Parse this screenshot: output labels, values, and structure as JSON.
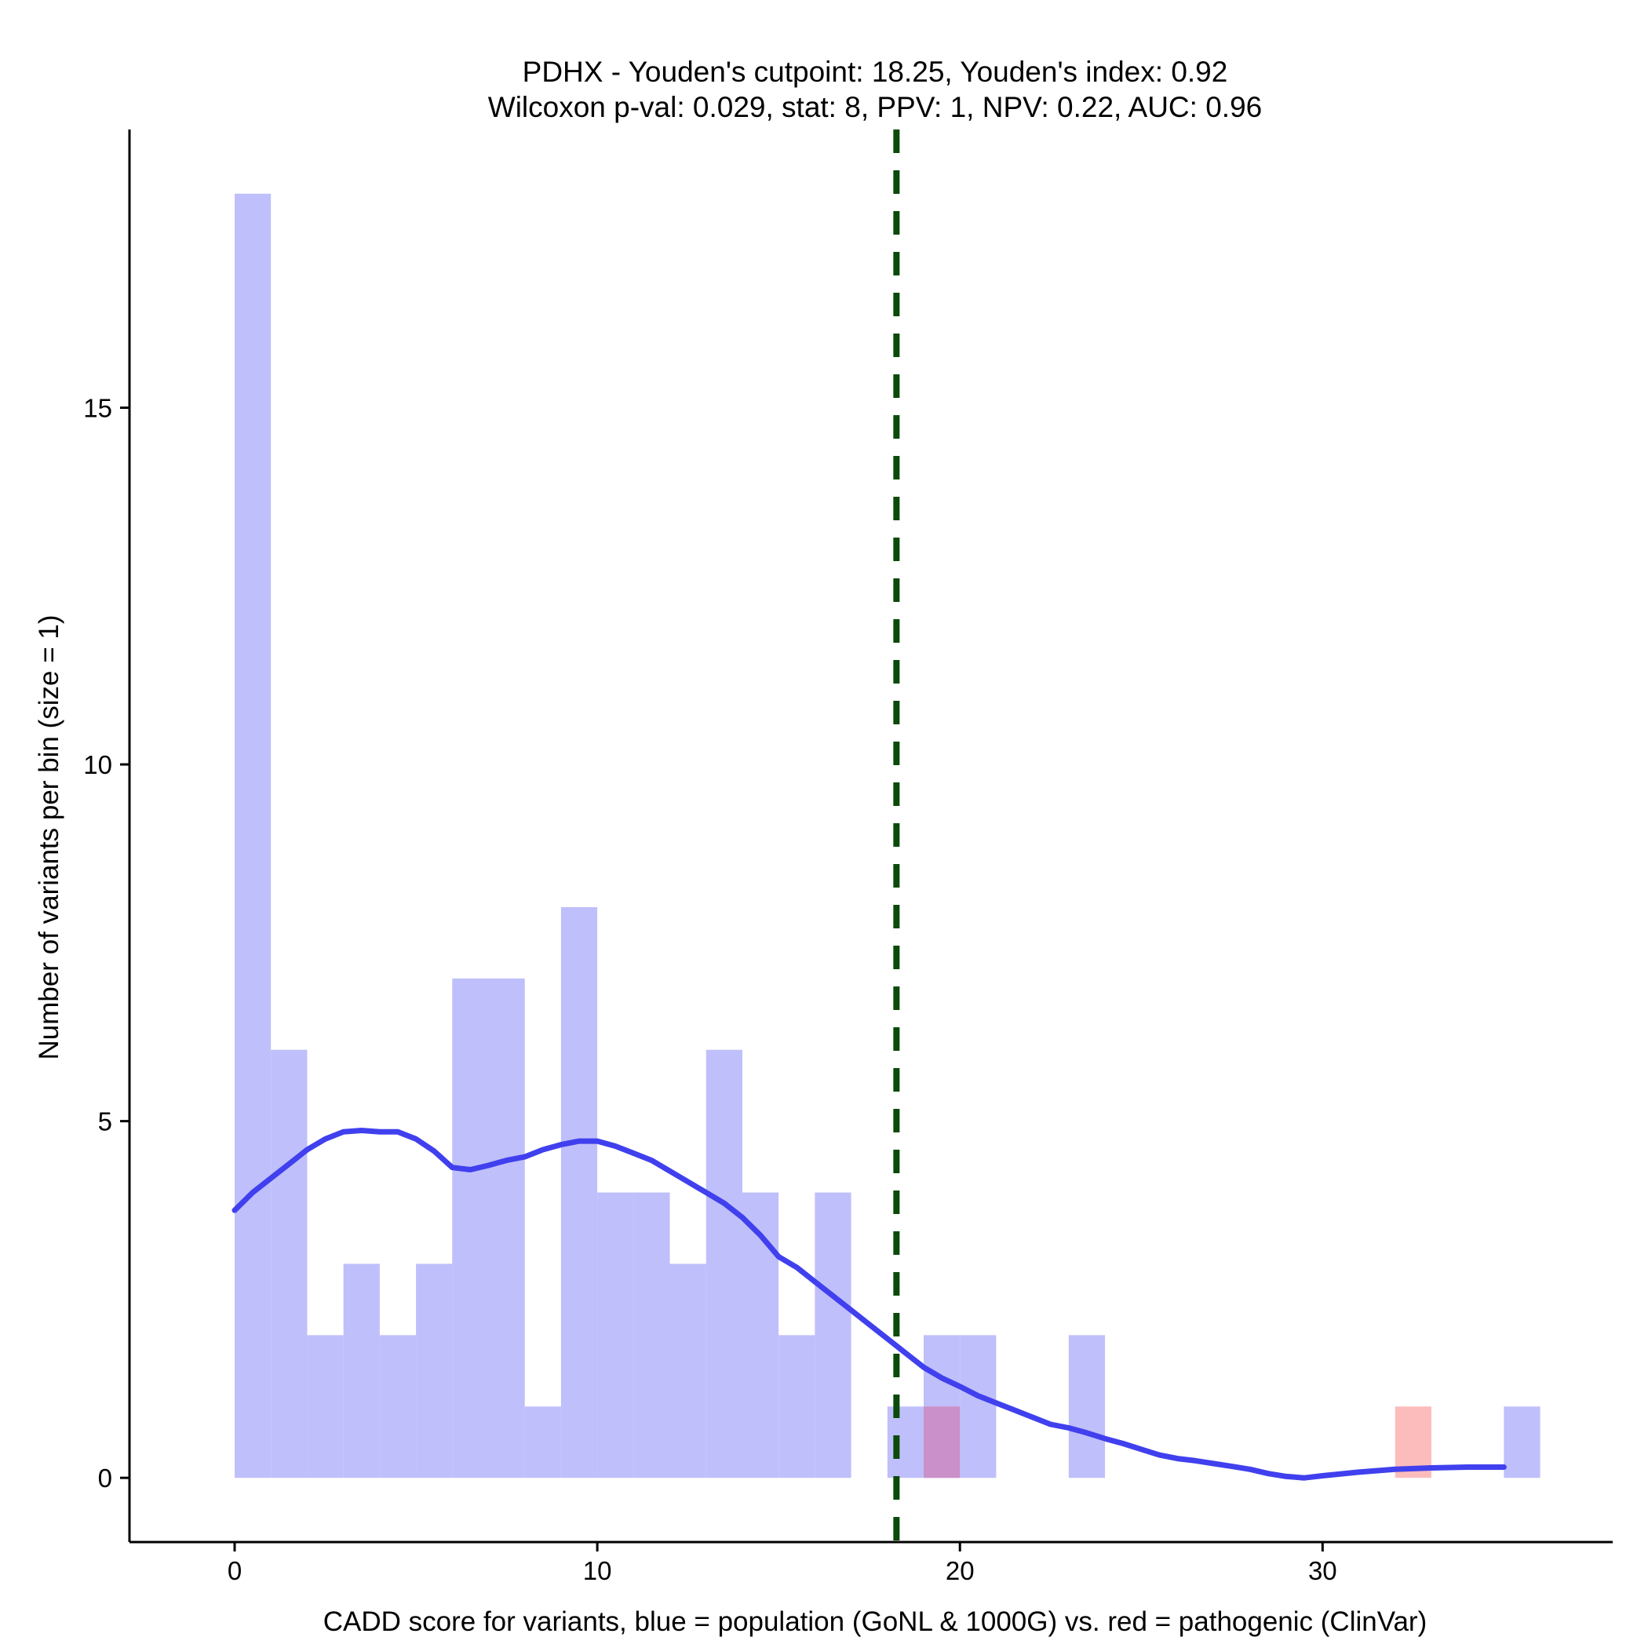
{
  "chart_data": {
    "type": "bar",
    "title_line1": "PDHX - Youden's cutpoint: 18.25, Youden's index: 0.92",
    "title_line2": "Wilcoxon p-val: 0.029, stat: 8, PPV: 1, NPV: 0.22, AUC: 0.96",
    "xlabel": "CADD score for variants, blue = population (GoNL & 1000G) vs. red = pathogenic (ClinVar)",
    "ylabel": "Number of variants per bin (size = 1)",
    "xlim": [
      -2.9,
      38
    ],
    "ylim": [
      -0.9,
      18.9
    ],
    "xticks": [
      0,
      10,
      20,
      30
    ],
    "yticks": [
      0,
      5,
      10,
      15
    ],
    "bin_width": 1,
    "cutpoint": 18.25,
    "colors": {
      "population": "#bfbffb",
      "pathogenic": "#fcbcbc",
      "overlap": "#c990c9",
      "density": "#4040ee",
      "cutpoint": "#0a4a0a"
    },
    "series": [
      {
        "name": "population",
        "bins": [
          {
            "start": 0,
            "count": 18
          },
          {
            "start": 1,
            "count": 6
          },
          {
            "start": 2,
            "count": 2
          },
          {
            "start": 3,
            "count": 3
          },
          {
            "start": 4,
            "count": 2
          },
          {
            "start": 5,
            "count": 3
          },
          {
            "start": 6,
            "count": 7
          },
          {
            "start": 7,
            "count": 7
          },
          {
            "start": 8,
            "count": 1
          },
          {
            "start": 9,
            "count": 8
          },
          {
            "start": 10,
            "count": 4
          },
          {
            "start": 11,
            "count": 4
          },
          {
            "start": 12,
            "count": 3
          },
          {
            "start": 13,
            "count": 6
          },
          {
            "start": 14,
            "count": 4
          },
          {
            "start": 15,
            "count": 2
          },
          {
            "start": 16,
            "count": 4
          },
          {
            "start": 18,
            "count": 1
          },
          {
            "start": 19,
            "count": 2
          },
          {
            "start": 20,
            "count": 2
          },
          {
            "start": 23,
            "count": 2
          },
          {
            "start": 35,
            "count": 1
          }
        ]
      },
      {
        "name": "pathogenic",
        "bins": [
          {
            "start": 19,
            "count": 1
          },
          {
            "start": 32,
            "count": 1
          }
        ]
      }
    ],
    "density_curve": [
      [
        0,
        3.75
      ],
      [
        0.5,
        4.0
      ],
      [
        1,
        4.2
      ],
      [
        1.5,
        4.4
      ],
      [
        2,
        4.6
      ],
      [
        2.5,
        4.75
      ],
      [
        3,
        4.85
      ],
      [
        3.5,
        4.87
      ],
      [
        4,
        4.85
      ],
      [
        4.5,
        4.85
      ],
      [
        5,
        4.75
      ],
      [
        5.5,
        4.58
      ],
      [
        6,
        4.35
      ],
      [
        6.5,
        4.32
      ],
      [
        7,
        4.38
      ],
      [
        7.5,
        4.45
      ],
      [
        8,
        4.5
      ],
      [
        8.5,
        4.6
      ],
      [
        9,
        4.67
      ],
      [
        9.5,
        4.72
      ],
      [
        10,
        4.72
      ],
      [
        10.5,
        4.65
      ],
      [
        11,
        4.55
      ],
      [
        11.5,
        4.45
      ],
      [
        12,
        4.3
      ],
      [
        12.5,
        4.15
      ],
      [
        13,
        4.0
      ],
      [
        13.5,
        3.85
      ],
      [
        14,
        3.65
      ],
      [
        14.5,
        3.4
      ],
      [
        15,
        3.1
      ],
      [
        15.5,
        2.95
      ],
      [
        16,
        2.75
      ],
      [
        16.5,
        2.55
      ],
      [
        17,
        2.35
      ],
      [
        17.5,
        2.15
      ],
      [
        18,
        1.95
      ],
      [
        18.5,
        1.75
      ],
      [
        19,
        1.55
      ],
      [
        19.5,
        1.4
      ],
      [
        20,
        1.28
      ],
      [
        20.5,
        1.15
      ],
      [
        21,
        1.05
      ],
      [
        21.5,
        0.95
      ],
      [
        22,
        0.85
      ],
      [
        22.5,
        0.75
      ],
      [
        23,
        0.7
      ],
      [
        23.5,
        0.63
      ],
      [
        24,
        0.55
      ],
      [
        24.5,
        0.48
      ],
      [
        25,
        0.4
      ],
      [
        25.5,
        0.32
      ],
      [
        26,
        0.27
      ],
      [
        26.5,
        0.24
      ],
      [
        27,
        0.2
      ],
      [
        27.5,
        0.16
      ],
      [
        28,
        0.12
      ],
      [
        28.5,
        0.06
      ],
      [
        29,
        0.02
      ],
      [
        29.5,
        0.0
      ],
      [
        30,
        0.03
      ],
      [
        31,
        0.08
      ],
      [
        32,
        0.12
      ],
      [
        33,
        0.14
      ],
      [
        34,
        0.15
      ],
      [
        35,
        0.15
      ]
    ]
  }
}
